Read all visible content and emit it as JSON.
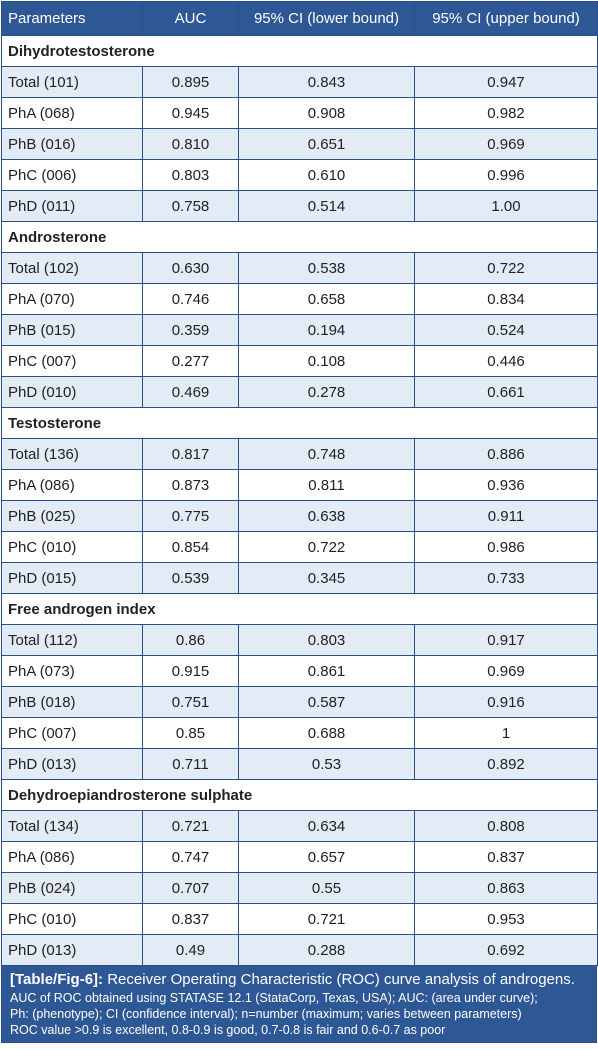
{
  "table": {
    "headers": [
      "Parameters",
      "AUC",
      "95% CI (lower bound)",
      "95% CI (upper bound)"
    ],
    "groups": [
      {
        "name": "Dihydrotestosterone",
        "rows": [
          [
            "Total (101)",
            "0.895",
            "0.843",
            "0.947"
          ],
          [
            "PhA (068)",
            "0.945",
            "0.908",
            "0.982"
          ],
          [
            "PhB (016)",
            "0.810",
            "0.651",
            "0.969"
          ],
          [
            "PhC (006)",
            "0.803",
            "0.610",
            "0.996"
          ],
          [
            "PhD (011)",
            "0.758",
            "0.514",
            "1.00"
          ]
        ]
      },
      {
        "name": "Androsterone",
        "rows": [
          [
            "Total (102)",
            "0.630",
            "0.538",
            "0.722"
          ],
          [
            "PhA (070)",
            "0.746",
            "0.658",
            "0.834"
          ],
          [
            "PhB (015)",
            "0.359",
            "0.194",
            "0.524"
          ],
          [
            "PhC (007)",
            "0.277",
            "0.108",
            "0.446"
          ],
          [
            "PhD (010)",
            "0.469",
            "0.278",
            "0.661"
          ]
        ]
      },
      {
        "name": "Testosterone",
        "rows": [
          [
            "Total (136)",
            "0.817",
            "0.748",
            "0.886"
          ],
          [
            "PhA (086)",
            "0.873",
            "0.811",
            "0.936"
          ],
          [
            "PhB (025)",
            "0.775",
            "0.638",
            "0.911"
          ],
          [
            "PhC (010)",
            "0.854",
            "0.722",
            "0.986"
          ],
          [
            "PhD (015)",
            "0.539",
            "0.345",
            "0.733"
          ]
        ]
      },
      {
        "name": "Free androgen index",
        "rows": [
          [
            "Total (112)",
            "0.86",
            "0.803",
            "0.917"
          ],
          [
            "PhA (073)",
            "0.915",
            "0.861",
            "0.969"
          ],
          [
            "PhB (018)",
            "0.751",
            "0.587",
            "0.916"
          ],
          [
            "PhC (007)",
            "0.85",
            "0.688",
            "1"
          ],
          [
            "PhD (013)",
            "0.711",
            "0.53",
            "0.892"
          ]
        ]
      },
      {
        "name": "Dehydroepiandrosterone sulphate",
        "rows": [
          [
            "Total (134)",
            "0.721",
            "0.634",
            "0.808"
          ],
          [
            "PhA (086)",
            "0.747",
            "0.657",
            "0.837"
          ],
          [
            "PhB (024)",
            "0.707",
            "0.55",
            "0.863"
          ],
          [
            "PhC (010)",
            "0.837",
            "0.721",
            "0.953"
          ],
          [
            "PhD (013)",
            "0.49",
            "0.288",
            "0.692"
          ]
        ]
      }
    ]
  },
  "caption": {
    "label": "[Table/Fig-6]:",
    "title": " Receiver Operating Characteristic (ROC) curve analysis of androgens.",
    "notes": [
      "AUC of ROC obtained using STATASE 12.1 (StataCorp, Texas, USA); AUC: (area under curve);",
      "Ph: (phenotype); CI (confidence interval); n=number (maximum; varies between parameters)",
      "ROC value >0.9 is excellent, 0.8-0.9 is good, 0.7-0.8 is fair and 0.6-0.7 as poor"
    ]
  },
  "colors": {
    "header_bg": "#2e5796",
    "row_alt_bg": "#e3ebf6",
    "border": "#2b4f82"
  }
}
